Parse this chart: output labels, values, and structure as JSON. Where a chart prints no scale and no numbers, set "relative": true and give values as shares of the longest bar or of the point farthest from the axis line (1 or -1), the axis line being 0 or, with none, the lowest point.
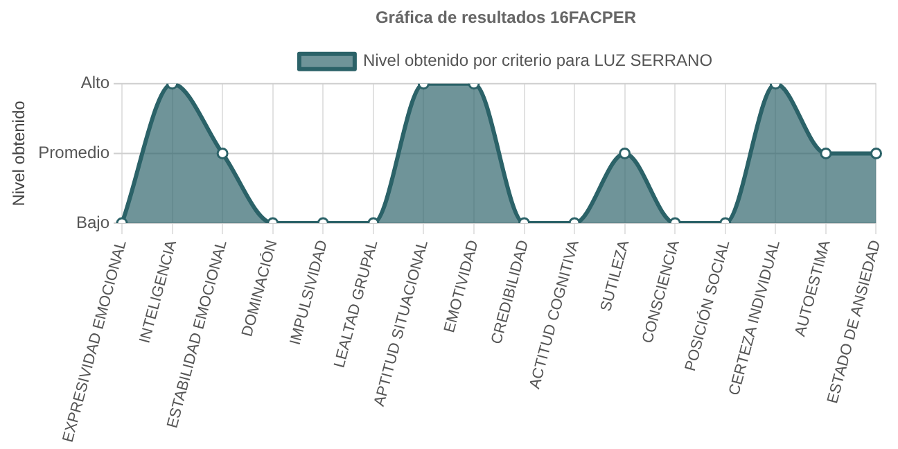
{
  "chart_data": {
    "type": "area",
    "title": "Gráfica de resultados 16FACPER",
    "ylabel": "Nivel obtenido",
    "categories": [
      "EXPRESIVIDAD EMOCIONAL",
      "INTELIGENCIA",
      "ESTABILIDAD EMOCIONAL",
      "DOMINACIÓN",
      "IMPULSIVIDAD",
      "LEALTAD GRUPAL",
      "APTITUD SITUACIONAL",
      "EMOTIVIDAD",
      "CREDIBILIDAD",
      "ACTITUD COGNITIVA",
      "SUTILEZA",
      "CONSCIENCIA",
      "POSICIÓN SOCIAL",
      "CERTEZA INDIVIDUAL",
      "AUTOESTIMA",
      "ESTADO DE ANSIEDAD"
    ],
    "series": [
      {
        "name": "Nivel obtenido por criterio para LUZ SERRANO",
        "color": "#2b6268",
        "values": [
          0,
          1,
          0.5,
          0,
          0,
          0,
          1,
          1,
          0,
          0,
          0.5,
          0,
          0,
          1,
          0.5,
          0.5
        ]
      }
    ],
    "relative": true,
    "ref_lines": [
      {
        "axis": "y",
        "value": 0,
        "label": "Bajo",
        "color": "#cfcfcf"
      },
      {
        "axis": "y",
        "value": 0.5,
        "label": "Promedio",
        "color": "#cfcfcf"
      },
      {
        "axis": "y",
        "value": 1,
        "label": "Alto",
        "color": "#cfcfcf"
      }
    ],
    "grid": "x",
    "legend": "top",
    "marker": "circle",
    "line_style": "solid"
  }
}
